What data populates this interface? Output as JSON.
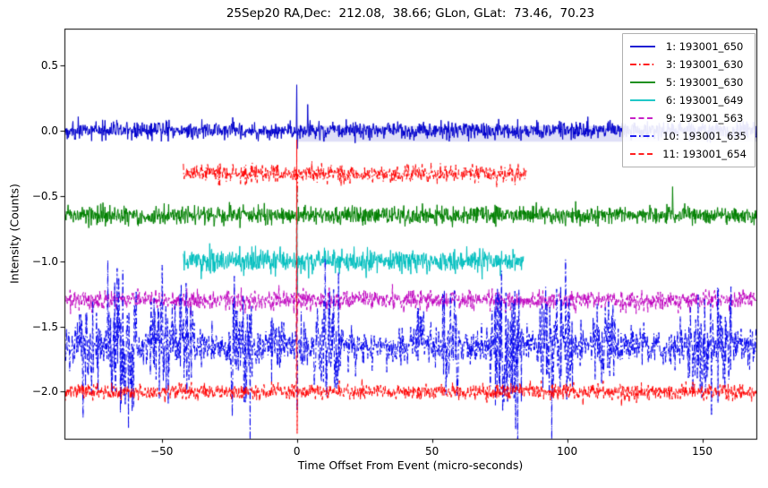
{
  "chart_data": {
    "type": "line",
    "title": "25Sep20 RA,Dec:  212.08,  38.66; GLon, GLat:  73.46,  70.23",
    "xlabel": "Time Offset From Event (micro-seconds)",
    "ylabel": "Intensity (Counts)",
    "xlim": [
      -86,
      170
    ],
    "ylim": [
      -2.36,
      0.78
    ],
    "grid": false,
    "legend_position": "upper right",
    "xticks": {
      "values": [
        -50,
        0,
        50,
        100,
        150
      ],
      "labels": [
        "−50",
        "0",
        "50",
        "100",
        "150"
      ]
    },
    "yticks": {
      "values": [
        0.5,
        0.0,
        -0.5,
        -1.0,
        -1.5,
        -2.0
      ],
      "labels": [
        "0.5",
        "0.0",
        "−0.5",
        "−1.0",
        "−1.5",
        "−2.0"
      ]
    },
    "background_band": {
      "color": "#d9d9f6",
      "x_range": [
        0,
        170
      ],
      "y_range": [
        -0.085,
        0.035
      ]
    },
    "series": [
      {
        "label": " 1: 193001_650",
        "color": "#0000cd",
        "linestyle": "solid",
        "baseline": 0.0,
        "noise_sigma": 0.034,
        "x_range": [
          -86,
          170
        ],
        "spikes": [
          {
            "x": 0,
            "up": 0.35,
            "down": -0.14
          },
          {
            "x": 4,
            "up": 0.2
          }
        ]
      },
      {
        "label": " 3: 193001_630",
        "color": "#ff0000",
        "linestyle": "dashdot",
        "baseline": -0.33,
        "noise_sigma": 0.033,
        "x_range": [
          -42,
          85
        ],
        "spikes": [
          {
            "x": 0,
            "down": -0.22
          }
        ]
      },
      {
        "label": " 5: 193001_630",
        "color": "#008000",
        "linestyle": "solid",
        "baseline": -0.65,
        "noise_sigma": 0.034,
        "x_range": [
          -86,
          170
        ],
        "spikes": [
          {
            "x": 139,
            "up": 0.22
          }
        ]
      },
      {
        "label": " 6: 193001_649",
        "color": "#00bfbf",
        "linestyle": "solid",
        "baseline": -1.0,
        "noise_sigma": 0.042,
        "x_range": [
          -42,
          84
        ],
        "spikes": [
          {
            "x": 0,
            "up": 0.56,
            "down": -0.26
          }
        ]
      },
      {
        "label": " 9: 193001_563",
        "color": "#bf00bf",
        "linestyle": "dashed",
        "baseline": -1.3,
        "noise_sigma": 0.036,
        "x_range": [
          -86,
          170
        ],
        "spikes": [
          {
            "x": 0,
            "up": 0.26,
            "down": -0.16
          }
        ]
      },
      {
        "label": "10: 193001_635",
        "color": "#0000ee",
        "linestyle": "dashdot",
        "baseline": -1.65,
        "noise_sigma": 0.07,
        "bursty": true,
        "x_range": [
          -86,
          170
        ],
        "spikes": [
          {
            "x": 0,
            "up": 0.36,
            "down": -0.5
          }
        ]
      },
      {
        "label": "11: 193001_654",
        "color": "#ff0000",
        "linestyle": "dashed",
        "baseline": -2.0,
        "noise_sigma": 0.03,
        "x_range": [
          -86,
          170
        ],
        "spikes": [
          {
            "x": 0,
            "up": 1.93,
            "down": -0.32
          }
        ]
      }
    ]
  }
}
